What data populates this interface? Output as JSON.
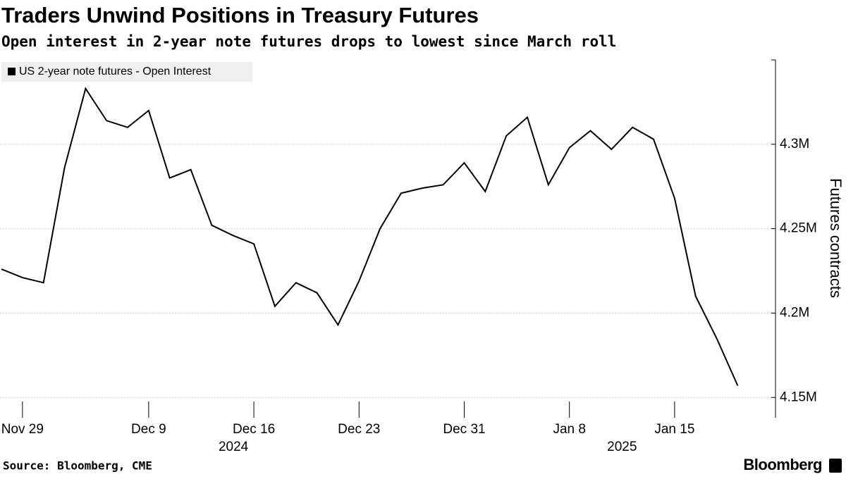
{
  "chart_data": {
    "type": "line",
    "title": "Traders Unwind Positions in Treasury Futures",
    "subtitle": "Open interest in 2-year note futures drops to lowest since March roll",
    "y_axis_label": "Futures contracts",
    "source": "Source: Bloomberg, CME",
    "brand": "Bloomberg",
    "year_labels": [
      "2024",
      "2025"
    ],
    "categories": [
      null,
      "Nov 29",
      null,
      null,
      null,
      null,
      null,
      "Dec 9",
      null,
      null,
      null,
      null,
      "Dec 16",
      null,
      null,
      null,
      null,
      "Dec 23",
      null,
      null,
      null,
      null,
      "Dec 31",
      null,
      null,
      null,
      null,
      "Jan 8",
      null,
      null,
      null,
      null,
      "Jan 15",
      null,
      null,
      null
    ],
    "series": [
      {
        "name": "US 2-year note futures - Open Interest",
        "color": "#000000",
        "values": [
          4226000,
          4221000,
          4218000,
          4286000,
          4333000,
          4314000,
          4310000,
          4320000,
          4280000,
          4285000,
          4252000,
          4246000,
          4241000,
          4204000,
          4218000,
          4212000,
          4193000,
          4219000,
          4250000,
          4271000,
          4274000,
          4276000,
          4289000,
          4272000,
          4305000,
          4316000,
          4276000,
          4298000,
          4308000,
          4297000,
          4310000,
          4303000,
          4268000,
          4210000,
          4185000,
          4157000
        ]
      }
    ],
    "ylim": [
      4138000,
      4350000
    ],
    "yticks": [
      {
        "value": 4150000,
        "label": "4.15M"
      },
      {
        "value": 4200000,
        "label": "4.2M"
      },
      {
        "value": 4250000,
        "label": "4.25M"
      },
      {
        "value": 4300000,
        "label": "4.3M"
      }
    ],
    "y_axis_side": "right",
    "grid": true,
    "legend": "top-left"
  }
}
